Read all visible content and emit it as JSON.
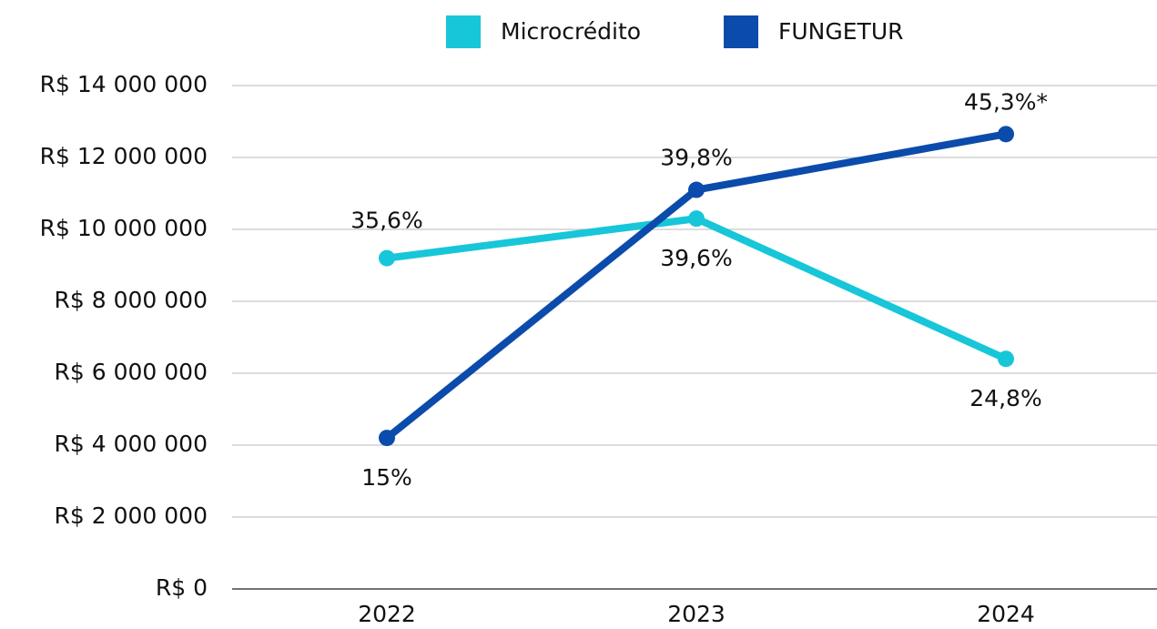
{
  "chart_data": {
    "type": "line",
    "categories": [
      "2022",
      "2023",
      "2024"
    ],
    "series": [
      {
        "name": "Microcrédito",
        "color": "#17c6d8",
        "values": [
          9200000,
          10300000,
          6400000
        ],
        "labels": [
          "35,6%",
          "39,6%",
          "24,8%"
        ]
      },
      {
        "name": "FUNGETUR",
        "color": "#0b4bab",
        "values": [
          4200000,
          11100000,
          12650000
        ],
        "labels": [
          "15%",
          "39,8%",
          "45,3%*"
        ]
      }
    ],
    "ylim": [
      0,
      14000000
    ],
    "yticks": [
      {
        "value": 0,
        "label": "R$ 0"
      },
      {
        "value": 2000000,
        "label": "R$ 2 000 000"
      },
      {
        "value": 4000000,
        "label": "R$ 4 000 000"
      },
      {
        "value": 6000000,
        "label": "R$ 6 000 000"
      },
      {
        "value": 8000000,
        "label": "R$ 8 000 000"
      },
      {
        "value": 10000000,
        "label": "R$ 10 000 000"
      },
      {
        "value": 12000000,
        "label": "R$ 12 000 000"
      },
      {
        "value": 14000000,
        "label": "R$ 14 000 000"
      }
    ],
    "grid": true,
    "legend": "top"
  }
}
